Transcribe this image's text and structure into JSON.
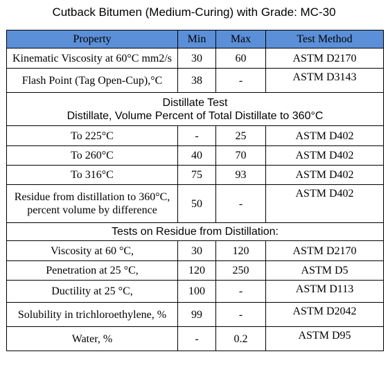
{
  "title": "Cutback Bitumen (Medium-Curing) with Grade: MC-30",
  "colors": {
    "header_bg": "#5b8fd8",
    "border": "#000000"
  },
  "table": {
    "headers": [
      "Property",
      "Min",
      "Max",
      "Test Method"
    ],
    "section1_rows": [
      {
        "property": "Kinematic Viscosity at 60°C mm2/s",
        "min": "30",
        "max": "60",
        "method": "ASTM D2170"
      },
      {
        "property": "Flash Point (Tag Open-Cup),°C",
        "min": "38",
        "max": "-",
        "method": "ASTM D3143"
      }
    ],
    "distillate_heading": "Distillate Test",
    "distillate_subheading": "Distillate, Volume Percent of Total Distillate to 360°C",
    "distillate_rows": [
      {
        "property": "To 225°C",
        "min": "-",
        "max": "25",
        "method": "ASTM D402"
      },
      {
        "property": "To 260°C",
        "min": "40",
        "max": "70",
        "method": "ASTM D402"
      },
      {
        "property": "To 316°C",
        "min": "75",
        "max": "93",
        "method": "ASTM D402"
      },
      {
        "property_line1": "Residue from distillation to 360°C,",
        "property_line2": "percent volume by difference",
        "min": "50",
        "max": "-",
        "method": "ASTM D402"
      }
    ],
    "residue_heading": "Tests on Residue from Distillation:",
    "residue_rows": [
      {
        "property": "Viscosity at 60 °C,",
        "min": "30",
        "max": "120",
        "method": "ASTM D2170"
      },
      {
        "property": "Penetration at 25 °C,",
        "min": "120",
        "max": "250",
        "method": "ASTM D5"
      },
      {
        "property": "Ductility at 25 °C,",
        "min": "100",
        "max": "-",
        "method": "ASTM D113"
      },
      {
        "property": "Solubility in trichloroethylene, %",
        "min": "99",
        "max": "-",
        "method": "ASTM D2042"
      },
      {
        "property": "Water, %",
        "min": "-",
        "max": "0.2",
        "method": "ASTM D95"
      }
    ]
  }
}
